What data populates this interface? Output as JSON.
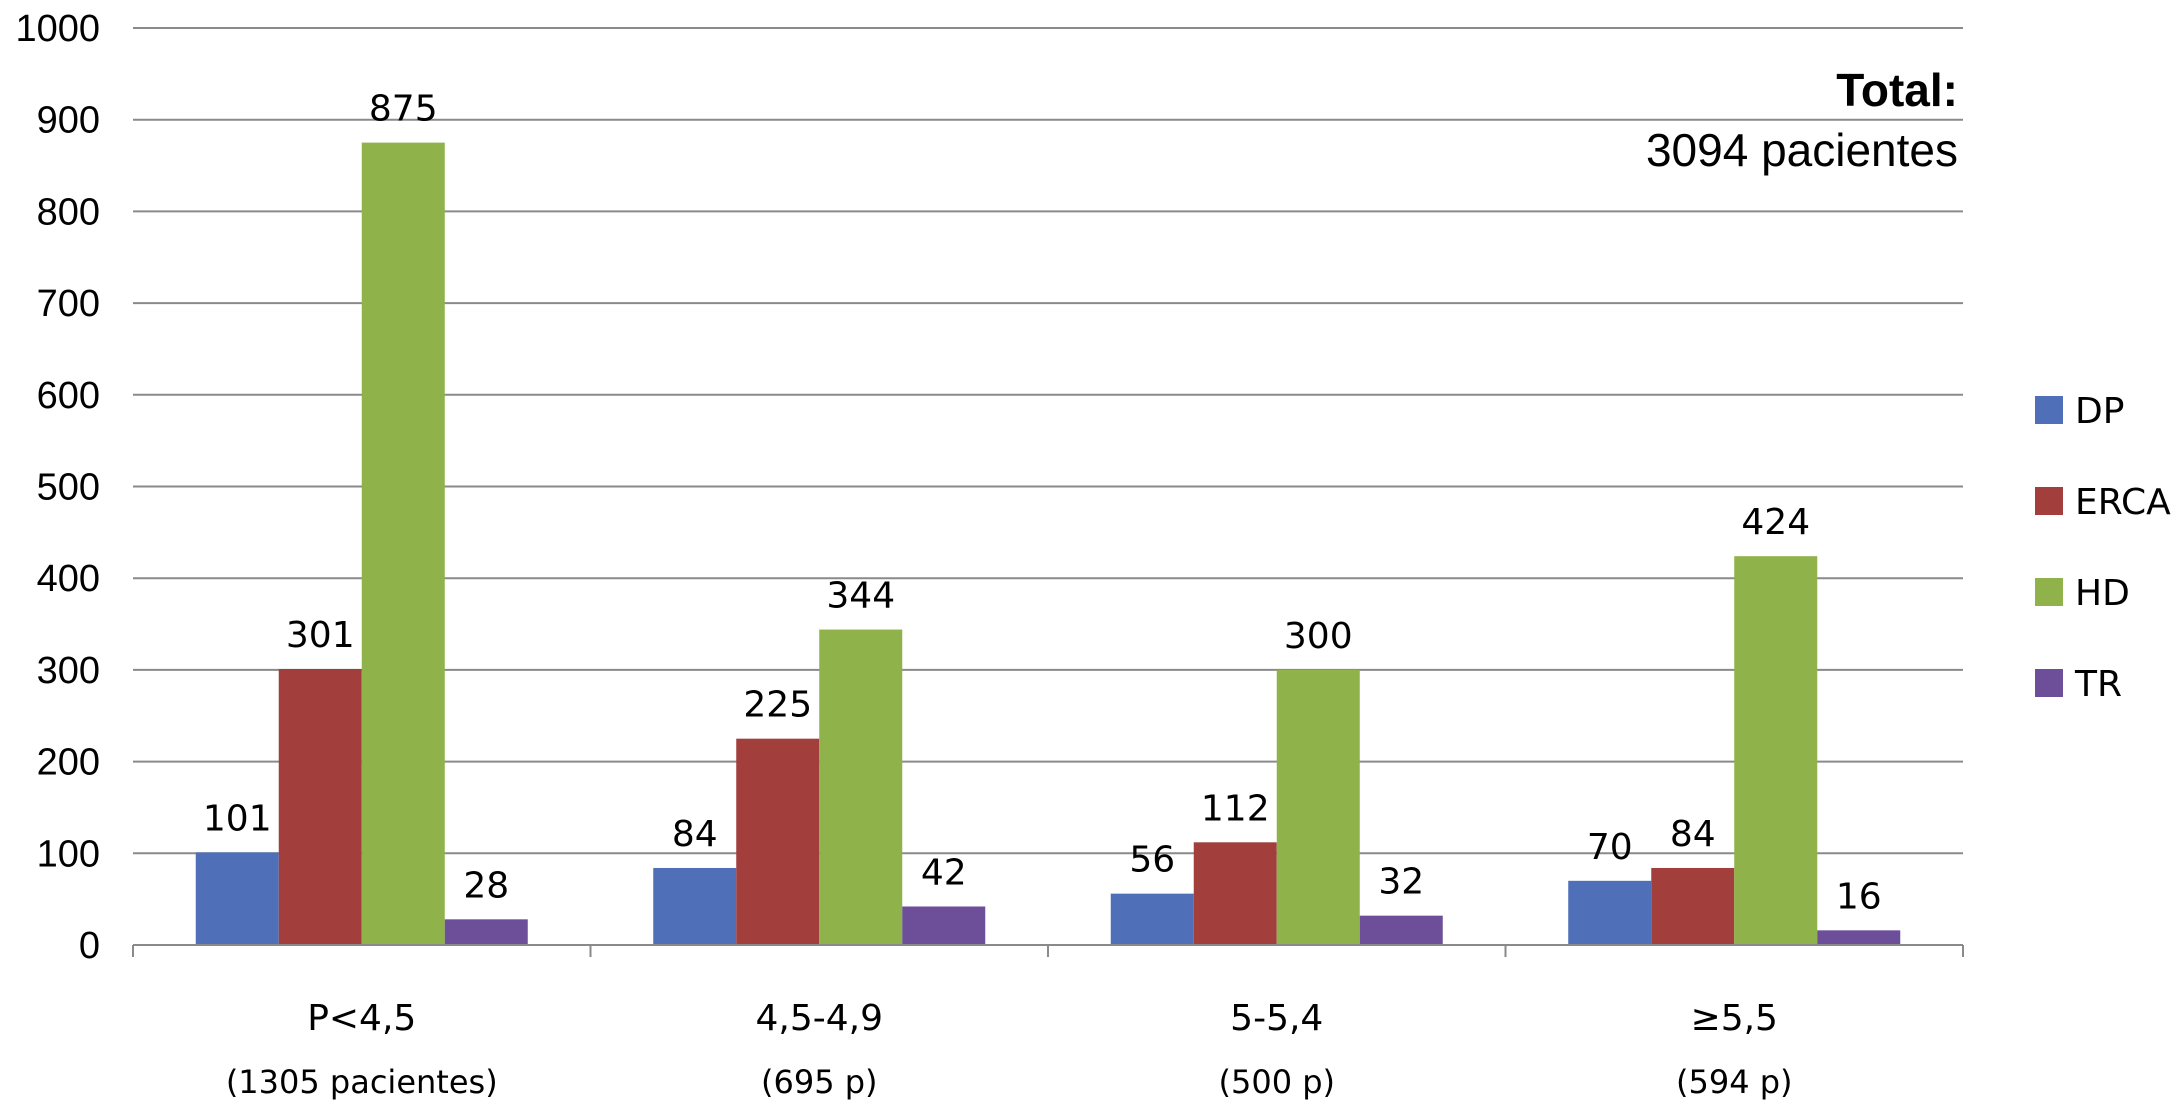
{
  "chart_data": {
    "type": "bar",
    "categories": [
      "P<4,5",
      "4,5-4,9",
      "5-5,4",
      "≥5,5"
    ],
    "category_sublabels": [
      "(1305 pacientes)",
      "(695 p)",
      "(500 p)",
      "(594 p)"
    ],
    "series": [
      {
        "name": "DP",
        "color": "#4f6fb8",
        "values": [
          101,
          84,
          56,
          70
        ]
      },
      {
        "name": "ERCA",
        "color": "#a23f3c",
        "values": [
          301,
          225,
          112,
          84
        ]
      },
      {
        "name": "HD",
        "color": "#8fb24a",
        "values": [
          875,
          344,
          300,
          424
        ]
      },
      {
        "name": "TR",
        "color": "#6d4f99",
        "values": [
          28,
          42,
          32,
          16
        ]
      }
    ],
    "ylim": [
      0,
      1000
    ],
    "yticks": [
      0,
      100,
      200,
      300,
      400,
      500,
      600,
      700,
      800,
      900,
      1000
    ],
    "grid": true,
    "legend_position": "right",
    "annotation": {
      "title": "Total:",
      "text": "3094 pacientes"
    }
  }
}
